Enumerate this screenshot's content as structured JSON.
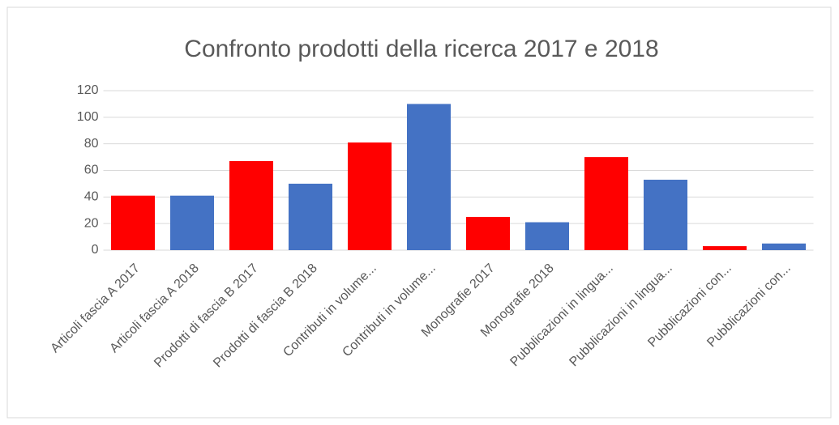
{
  "chart_data": {
    "type": "bar",
    "title": "Confronto prodotti della ricerca 2017 e 2018",
    "categories": [
      "Articoli fascia A 2017",
      "Articoli fascia A 2018",
      "Prodotti di fascia B 2017",
      "Prodotti di fascia B 2018",
      "Contributi in volume...",
      "Contributi in volume...",
      "Monografie 2017",
      "Monografie 2018",
      "Pubblicazioni in lingua...",
      "Pubblicazioni in lingua...",
      "Pubblicazioni con...",
      "Pubblicazioni con..."
    ],
    "values": [
      41,
      41,
      67,
      50,
      81,
      110,
      25,
      21,
      70,
      53,
      3,
      5
    ],
    "colors": [
      "#ff0000",
      "#4472c4",
      "#ff0000",
      "#4472c4",
      "#ff0000",
      "#4472c4",
      "#ff0000",
      "#4472c4",
      "#ff0000",
      "#4472c4",
      "#ff0000",
      "#4472c4"
    ],
    "ylim": [
      0,
      120
    ],
    "yticks": [
      0,
      20,
      40,
      60,
      80,
      100,
      120
    ],
    "grid": true
  }
}
